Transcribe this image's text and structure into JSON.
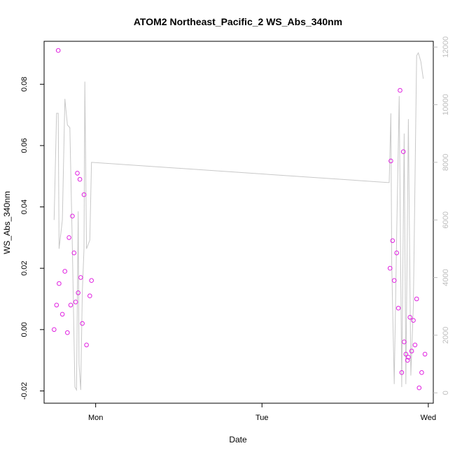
{
  "chart_data": {
    "type": "scatter",
    "title": "ATOM2 Northeast_Pacific_2 WS_Abs_340nm",
    "xlabel": "Date",
    "ylabel": "WS_Abs_340nm",
    "x_ticks": [
      "Mon",
      "Tue",
      "Wed"
    ],
    "y_ticks": [
      "-0.02",
      "0.00",
      "0.02",
      "0.04",
      "0.06",
      "0.08"
    ],
    "y_right_ticks": [
      "0",
      "2000",
      "4000",
      "6000",
      "8000",
      "10000",
      "12000"
    ],
    "xlim": [
      -0.31,
      2.03
    ],
    "ylim": [
      -0.024,
      0.094
    ],
    "y_right_lim": [
      -360,
      12200
    ],
    "grid": false,
    "marker_color": "#e020e0",
    "line_color": "#c8c8c8",
    "series": [
      {
        "values": [
          {
            "x": -0.25,
            "y": 0.0
          },
          {
            "x": -0.235,
            "y": 0.008
          },
          {
            "x": -0.225,
            "y": 0.091
          },
          {
            "x": -0.22,
            "y": 0.015
          },
          {
            "x": -0.2,
            "y": 0.005
          },
          {
            "x": -0.185,
            "y": 0.019
          },
          {
            "x": -0.17,
            "y": -0.001
          },
          {
            "x": -0.16,
            "y": 0.03
          },
          {
            "x": -0.15,
            "y": 0.008
          },
          {
            "x": -0.14,
            "y": 0.037
          },
          {
            "x": -0.13,
            "y": 0.025
          },
          {
            "x": -0.12,
            "y": 0.009
          },
          {
            "x": -0.11,
            "y": 0.051
          },
          {
            "x": -0.105,
            "y": 0.012
          },
          {
            "x": -0.095,
            "y": 0.049
          },
          {
            "x": -0.09,
            "y": 0.017
          },
          {
            "x": -0.08,
            "y": 0.002
          },
          {
            "x": -0.07,
            "y": 0.044
          },
          {
            "x": -0.055,
            "y": -0.005
          },
          {
            "x": -0.035,
            "y": 0.011
          },
          {
            "x": -0.025,
            "y": 0.016
          },
          {
            "x": 1.77,
            "y": 0.02
          },
          {
            "x": 1.775,
            "y": 0.055
          },
          {
            "x": 1.785,
            "y": 0.029
          },
          {
            "x": 1.795,
            "y": 0.016
          },
          {
            "x": 1.81,
            "y": 0.025
          },
          {
            "x": 1.82,
            "y": 0.007
          },
          {
            "x": 1.83,
            "y": 0.078
          },
          {
            "x": 1.84,
            "y": -0.014
          },
          {
            "x": 1.85,
            "y": 0.058
          },
          {
            "x": 1.855,
            "y": -0.004
          },
          {
            "x": 1.865,
            "y": -0.008
          },
          {
            "x": 1.875,
            "y": -0.01
          },
          {
            "x": 1.88,
            "y": -0.009
          },
          {
            "x": 1.89,
            "y": 0.004
          },
          {
            "x": 1.9,
            "y": -0.007
          },
          {
            "x": 1.91,
            "y": 0.003
          },
          {
            "x": 1.92,
            "y": -0.005
          },
          {
            "x": 1.93,
            "y": 0.01
          },
          {
            "x": 1.945,
            "y": -0.019
          },
          {
            "x": 1.96,
            "y": -0.014
          },
          {
            "x": 1.98,
            "y": -0.008
          }
        ]
      },
      {
        "axis": "right",
        "values": [
          {
            "x": -0.25,
            "y": 6000
          },
          {
            "x": -0.235,
            "y": 9700
          },
          {
            "x": -0.225,
            "y": 9700
          },
          {
            "x": -0.22,
            "y": 5000
          },
          {
            "x": -0.2,
            "y": 6000
          },
          {
            "x": -0.185,
            "y": 10200
          },
          {
            "x": -0.17,
            "y": 9300
          },
          {
            "x": -0.155,
            "y": 9200
          },
          {
            "x": -0.14,
            "y": 5000
          },
          {
            "x": -0.125,
            "y": 200
          },
          {
            "x": -0.115,
            "y": 100
          },
          {
            "x": -0.105,
            "y": 6300
          },
          {
            "x": -0.1,
            "y": 1000
          },
          {
            "x": -0.09,
            "y": 100
          },
          {
            "x": -0.08,
            "y": 3500
          },
          {
            "x": -0.07,
            "y": 5000
          },
          {
            "x": -0.065,
            "y": 10800
          },
          {
            "x": -0.055,
            "y": 5000
          },
          {
            "x": -0.035,
            "y": 5300
          },
          {
            "x": -0.025,
            "y": 8000
          },
          {
            "x": 1.755,
            "y": 7300
          },
          {
            "x": 1.765,
            "y": 7300
          },
          {
            "x": 1.775,
            "y": 9700
          },
          {
            "x": 1.78,
            "y": 4500
          },
          {
            "x": 1.795,
            "y": 300
          },
          {
            "x": 1.81,
            "y": 5500
          },
          {
            "x": 1.825,
            "y": 10300
          },
          {
            "x": 1.84,
            "y": 200
          },
          {
            "x": 1.855,
            "y": 9000
          },
          {
            "x": 1.865,
            "y": 300
          },
          {
            "x": 1.88,
            "y": 9500
          },
          {
            "x": 1.895,
            "y": 600
          },
          {
            "x": 1.91,
            "y": 3000
          },
          {
            "x": 1.93,
            "y": 11700
          },
          {
            "x": 1.94,
            "y": 11800
          },
          {
            "x": 1.955,
            "y": 11500
          },
          {
            "x": 1.97,
            "y": 10900
          }
        ]
      }
    ]
  }
}
